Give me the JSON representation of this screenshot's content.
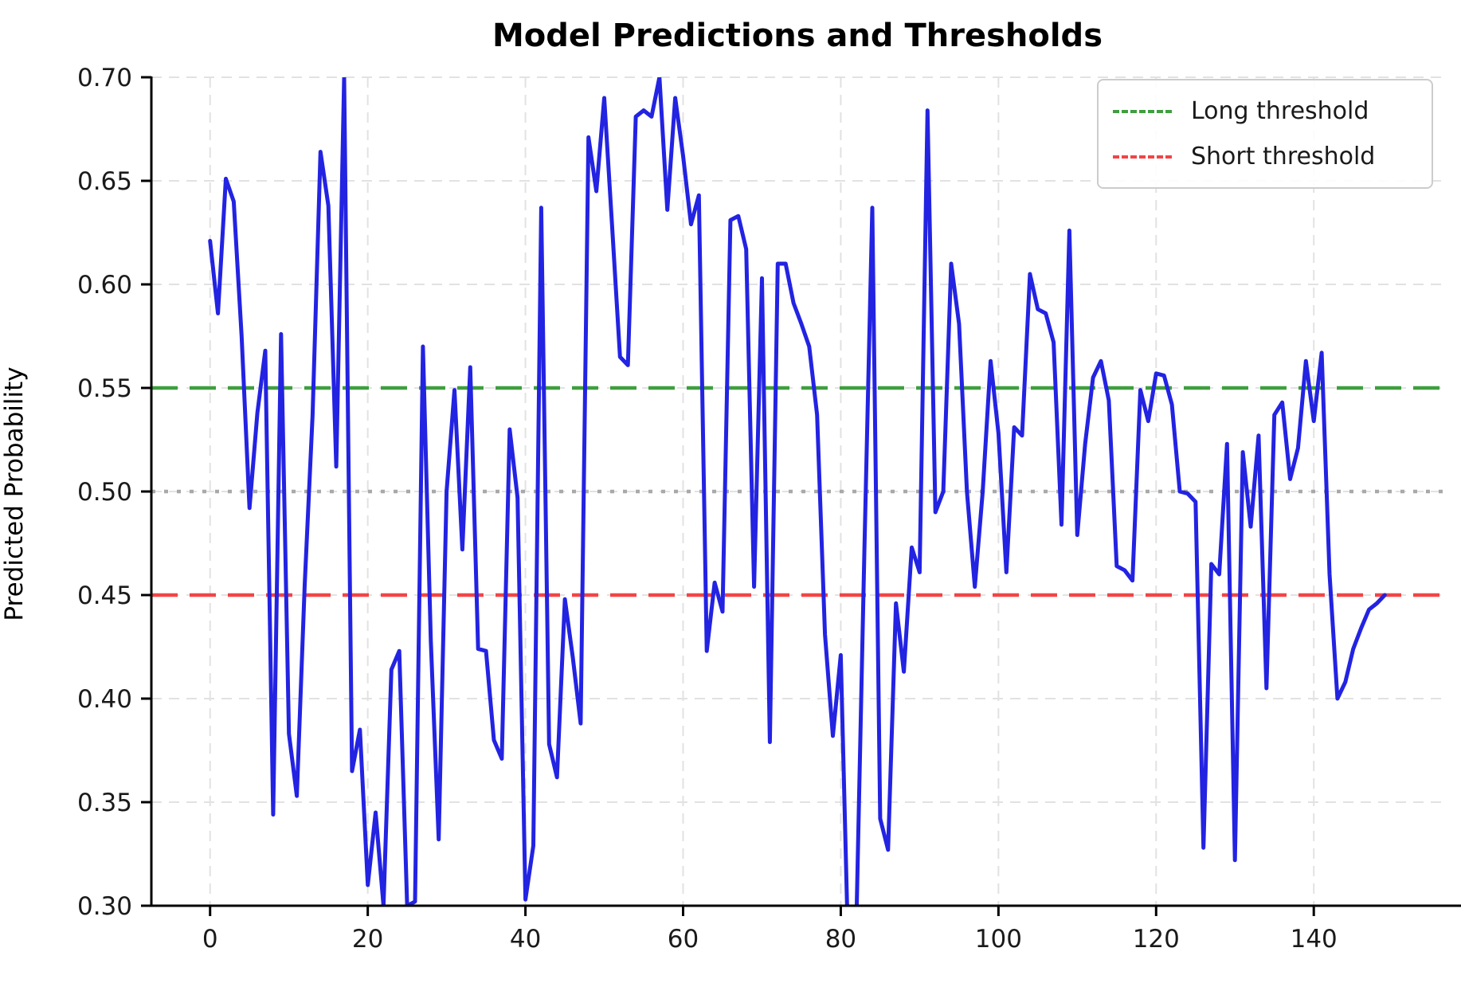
{
  "title": "Model Predictions and Thresholds",
  "ylabel": "Predicted Probability",
  "legend": {
    "items": [
      {
        "label": "Long threshold",
        "color": "#3f9e3f"
      },
      {
        "label": "Short threshold",
        "color": "#f24545"
      }
    ]
  },
  "colors": {
    "prediction_line": "#2323e2",
    "long_threshold": "#3f9e3f",
    "short_threshold": "#f24545",
    "midline": "#a9a9a9",
    "grid": "#e2e2e2",
    "axis": "#000000",
    "tick_label": "#1a1a1a"
  },
  "chart_data": {
    "type": "line",
    "title": "Model Predictions and Thresholds",
    "xlabel": "",
    "ylabel": "Predicted Probability",
    "xlim": [
      -7.45,
      156.45
    ],
    "ylim": [
      0.3,
      0.7
    ],
    "grid": true,
    "legend_position": "upper right",
    "x_ticks": [
      0,
      20,
      40,
      60,
      80,
      100,
      120,
      140
    ],
    "x_tick_labels": [
      "0",
      "20",
      "40",
      "60",
      "80",
      "100",
      "120",
      "140"
    ],
    "y_ticks": [
      0.3,
      0.35,
      0.4,
      0.45,
      0.5,
      0.55,
      0.6,
      0.65,
      0.7
    ],
    "y_tick_labels": [
      "0.30",
      "0.35",
      "0.40",
      "0.45",
      "0.50",
      "0.55",
      "0.60",
      "0.65",
      "0.70"
    ],
    "horizontal_lines": [
      {
        "name": "Long threshold",
        "value": 0.55,
        "style": "dashed",
        "color": "#3f9e3f",
        "in_legend": true
      },
      {
        "name": "Short threshold",
        "value": 0.45,
        "style": "dashed",
        "color": "#f24545",
        "in_legend": true
      },
      {
        "name": "midline",
        "value": 0.5,
        "style": "dotted",
        "color": "#a9a9a9",
        "in_legend": false
      }
    ],
    "series": [
      {
        "name": "predicted_probability",
        "color": "#2323e2",
        "x_start": 0,
        "x_step": 1,
        "values": [
          0.621,
          0.586,
          0.651,
          0.64,
          0.575,
          0.492,
          0.538,
          0.568,
          0.344,
          0.576,
          0.383,
          0.353,
          0.455,
          0.537,
          0.664,
          0.638,
          0.512,
          0.7,
          0.365,
          0.385,
          0.31,
          0.345,
          0.3,
          0.414,
          0.423,
          0.3,
          0.302,
          0.57,
          0.428,
          0.332,
          0.5,
          0.549,
          0.472,
          0.56,
          0.424,
          0.423,
          0.38,
          0.371,
          0.53,
          0.497,
          0.303,
          0.329,
          0.637,
          0.378,
          0.362,
          0.448,
          0.42,
          0.388,
          0.671,
          0.645,
          0.69,
          0.628,
          0.565,
          0.561,
          0.681,
          0.684,
          0.681,
          0.7,
          0.636,
          0.69,
          0.662,
          0.629,
          0.643,
          0.423,
          0.456,
          0.442,
          0.631,
          0.633,
          0.617,
          0.454,
          0.603,
          0.379,
          0.61,
          0.61,
          0.591,
          0.581,
          0.57,
          0.537,
          0.431,
          0.382,
          0.421,
          0.27,
          0.295,
          0.472,
          0.637,
          0.342,
          0.327,
          0.446,
          0.413,
          0.473,
          0.461,
          0.684,
          0.49,
          0.5,
          0.61,
          0.581,
          0.5,
          0.454,
          0.5,
          0.563,
          0.528,
          0.461,
          0.531,
          0.527,
          0.605,
          0.588,
          0.586,
          0.572,
          0.484,
          0.626,
          0.479,
          0.523,
          0.555,
          0.563,
          0.544,
          0.464,
          0.462,
          0.457,
          0.549,
          0.534,
          0.557,
          0.556,
          0.542,
          0.5,
          0.499,
          0.495,
          0.328,
          0.465,
          0.46,
          0.523,
          0.322,
          0.519,
          0.483,
          0.527,
          0.405,
          0.537,
          0.543,
          0.506,
          0.521,
          0.563,
          0.534,
          0.567,
          0.46,
          0.4,
          0.408,
          0.424,
          0.434,
          0.443,
          0.446,
          0.45
        ]
      }
    ]
  }
}
